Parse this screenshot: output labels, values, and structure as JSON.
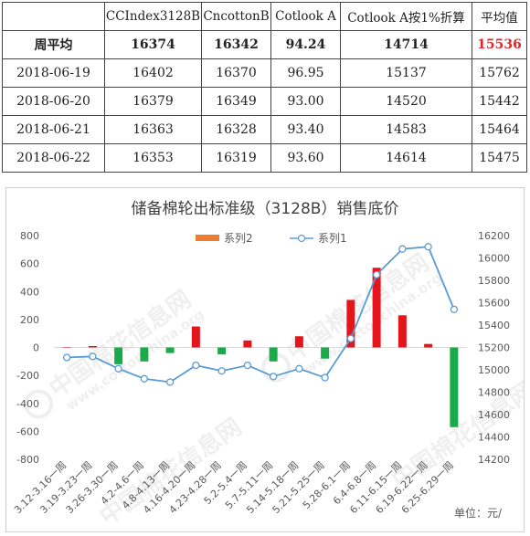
{
  "table": {
    "headers": [
      "",
      "CCIndex3128B",
      "CncottonB",
      "Cotlook A",
      "Cotlook A按1%折算",
      "平均值"
    ],
    "avg_row": {
      "label": "周平均",
      "values": [
        "16374",
        "16342",
        "94.24",
        "14714",
        "15536"
      ]
    },
    "rows": [
      {
        "date": "2018-06-19",
        "values": [
          "16402",
          "16370",
          "96.95",
          "15137",
          "15762"
        ]
      },
      {
        "date": "2018-06-20",
        "values": [
          "16379",
          "16349",
          "93.00",
          "14520",
          "15442"
        ]
      },
      {
        "date": "2018-06-21",
        "values": [
          "16363",
          "16328",
          "93.40",
          "14583",
          "15464"
        ]
      },
      {
        "date": "2018-06-22",
        "values": [
          "16353",
          "16319",
          "93.60",
          "14614",
          "15475"
        ]
      }
    ],
    "highlight_color": "#e0262b"
  },
  "chart_data": {
    "type": "bar+line",
    "title": "储备棉轮出标准级（3128B）销售底价",
    "categories": [
      "3.12-3.16一周",
      "3.19-3.23一周",
      "3.26-3.30一周",
      "4.2-4.6一周",
      "4.8-4.13一周",
      "4.16-4.20一周",
      "4.23-4.28一周",
      "5.2-5.4一周",
      "5.7-5.11一周",
      "5.14-5.18一周",
      "5.21-5.25一周",
      "5.28-6.1一周",
      "6.4-6.8一周",
      "6.11-6.15一周",
      "6.19-6.22一周",
      "6.25-6.29一周"
    ],
    "series": [
      {
        "name": "系列2",
        "type": "bar",
        "axis": "left",
        "values": [
          0,
          10,
          -120,
          -100,
          -40,
          150,
          -50,
          50,
          -100,
          80,
          -80,
          340,
          570,
          230,
          25,
          -570
        ]
      },
      {
        "name": "系列1",
        "type": "line",
        "axis": "right",
        "values": [
          15110,
          15120,
          15010,
          14920,
          14890,
          15040,
          14990,
          15040,
          14940,
          15010,
          14930,
          15280,
          15850,
          16080,
          16100,
          15540
        ]
      }
    ],
    "left_axis": {
      "min": -800,
      "max": 800,
      "step": 200
    },
    "right_axis": {
      "min": 14200,
      "max": 16200,
      "step": 200
    },
    "positive_color": "#e5161b",
    "negative_color": "#1aaa4a",
    "line_color": "#5b9bd5",
    "legend_swatch_color": "#ed7d31",
    "unit_label": "单位：元/",
    "legend_position": "top"
  }
}
